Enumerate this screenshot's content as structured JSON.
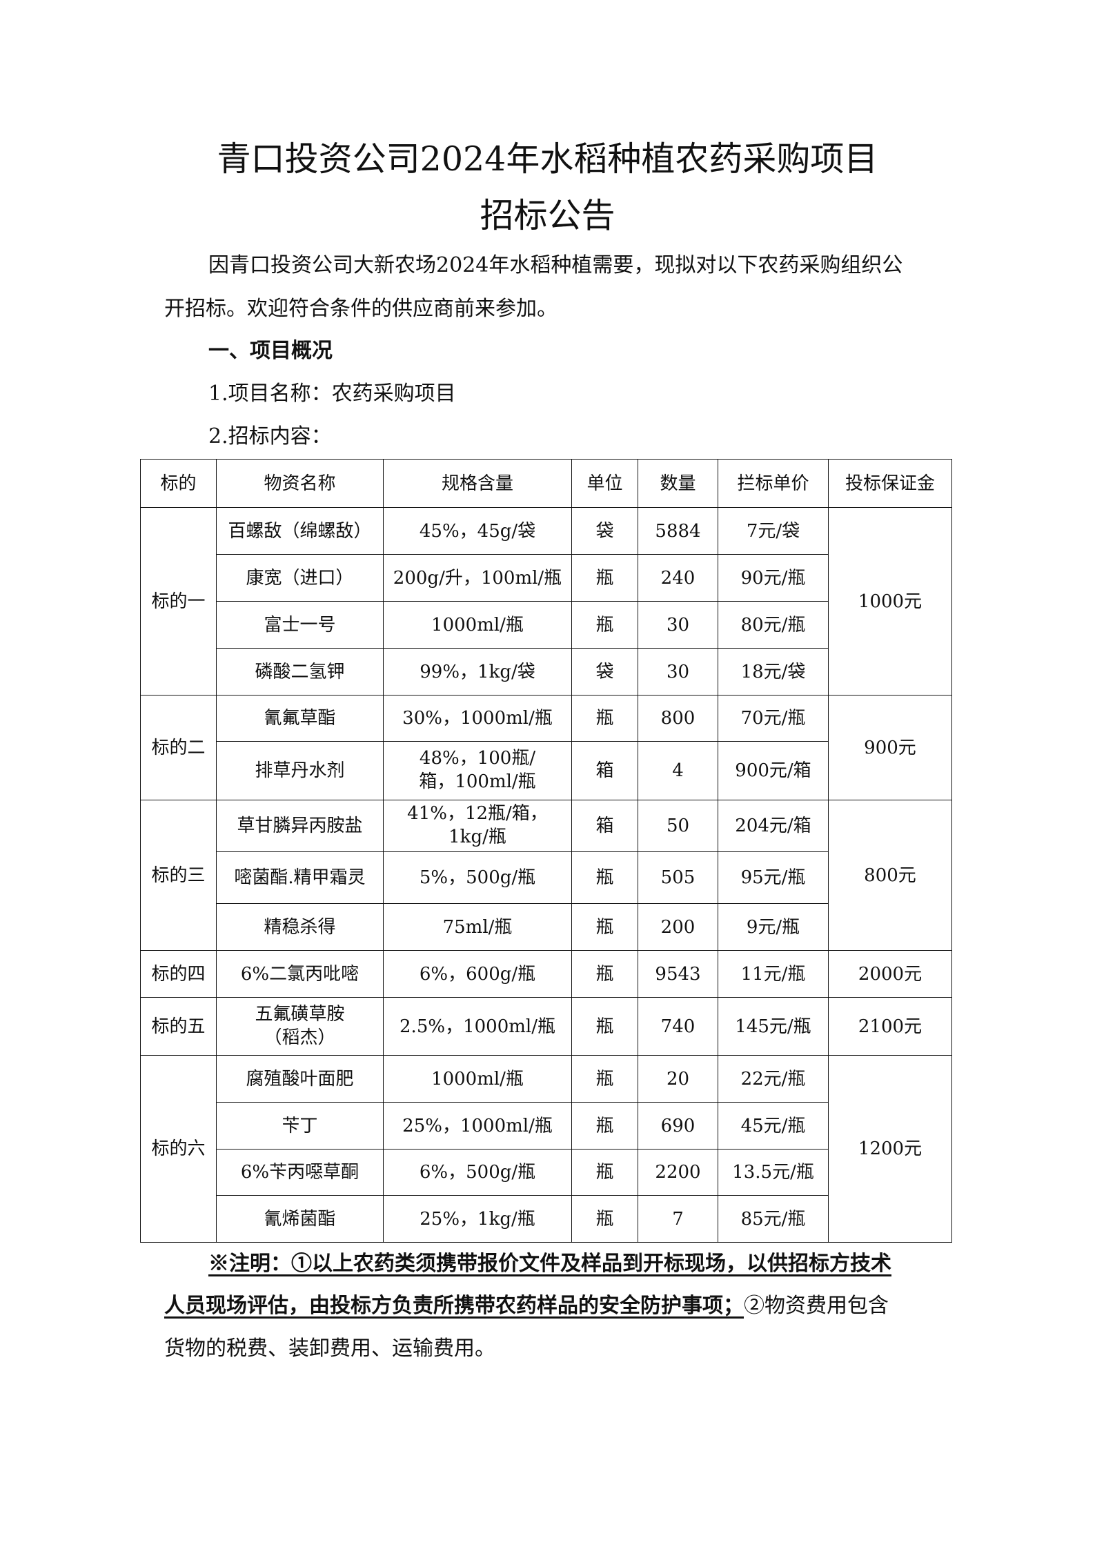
{
  "title_line1": "青口投资公司2024年水稻种植农药采购项目",
  "title_line2": "招标公告",
  "intro_line1": "因青口投资公司大新农场2024年水稻种植需要，现拟对以下农药采购组织公",
  "intro_line2": "开招标。欢迎符合条件的供应商前来参加。",
  "section1": "一、项目概况",
  "item1": "1.项目名称：农药采购项目",
  "item2": "2.招标内容：",
  "table": {
    "headers": [
      "标的",
      "物资名称",
      "规格含量",
      "单位",
      "数量",
      "拦标单价",
      "投标保证金"
    ],
    "groups": [
      {
        "lot": "标的一",
        "deposit": "1000元",
        "rows": [
          [
            "百螺敌（绵螺敌）",
            "45%，45g/袋",
            "袋",
            "5884",
            "7元/袋"
          ],
          [
            "康宽（进口）",
            "200g/升，100ml/瓶",
            "瓶",
            "240",
            "90元/瓶"
          ],
          [
            "富士一号",
            "1000ml/瓶",
            "瓶",
            "30",
            "80元/瓶"
          ],
          [
            "磷酸二氢钾",
            "99%，1kg/袋",
            "袋",
            "30",
            "18元/袋"
          ]
        ]
      },
      {
        "lot": "标的二",
        "deposit": "900元",
        "rows": [
          [
            "氰氟草酯",
            "30%，1000ml/瓶",
            "瓶",
            "800",
            "70元/瓶"
          ],
          [
            "排草丹水剂",
            "48%，100瓶/箱，100ml/瓶",
            "箱",
            "4",
            "900元/箱"
          ]
        ]
      },
      {
        "lot": "标的三",
        "deposit": "800元",
        "rows": [
          [
            "草甘膦异丙胺盐",
            "41%，12瓶/箱，1kg/瓶",
            "箱",
            "50",
            "204元/箱"
          ],
          [
            "嘧菌酯.精甲霜灵",
            "5%，500g/瓶",
            "瓶",
            "505",
            "95元/瓶"
          ],
          [
            "精稳杀得",
            "75ml/瓶",
            "瓶",
            "200",
            "9元/瓶"
          ]
        ]
      },
      {
        "lot": "标的四",
        "deposit": "2000元",
        "rows": [
          [
            "6%二氯丙吡嘧",
            "6%，600g/瓶",
            "瓶",
            "9543",
            "11元/瓶"
          ]
        ]
      },
      {
        "lot": "标的五",
        "deposit": "2100元",
        "rows": [
          [
            "五氟磺草胺（稻杰）",
            "2.5%，1000ml/瓶",
            "瓶",
            "740",
            "145元/瓶"
          ]
        ]
      },
      {
        "lot": "标的六",
        "deposit": "1200元",
        "rows": [
          [
            "腐殖酸叶面肥",
            "1000ml/瓶",
            "瓶",
            "20",
            "22元/瓶"
          ],
          [
            "苄丁",
            "25%，1000ml/瓶",
            "瓶",
            "690",
            "45元/瓶"
          ],
          [
            "6%苄丙噁草酮",
            "6%，500g/瓶",
            "瓶",
            "2200",
            "13.5元/瓶"
          ],
          [
            "氰烯菌酯",
            "25%，1kg/瓶",
            "瓶",
            "7",
            "85元/瓶"
          ]
        ]
      }
    ]
  },
  "note_bold_line1": "※注明：①以上农药类须携带报价文件及样品到开标现场，以供招标方技术",
  "note_bold_line2": "人员现场评估，由投标方负责所携带农药样品的安全防护事项；",
  "note_plain_line2": "②物资费用包含",
  "note_line3": "货物的税费、装卸费用、运输费用。"
}
